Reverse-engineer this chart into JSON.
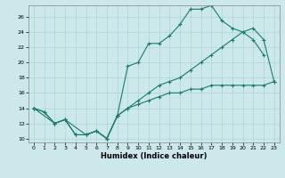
{
  "xlabel": "Humidex (Indice chaleur)",
  "bg_color": "#cce8ea",
  "grid_color": "#b0d8da",
  "line_color": "#1a7a6e",
  "xlim": [
    -0.5,
    23.5
  ],
  "ylim": [
    9.5,
    27.5
  ],
  "xticks": [
    0,
    1,
    2,
    3,
    4,
    5,
    6,
    7,
    8,
    9,
    10,
    11,
    12,
    13,
    14,
    15,
    16,
    17,
    18,
    19,
    20,
    21,
    22,
    23
  ],
  "yticks": [
    10,
    12,
    14,
    16,
    18,
    20,
    22,
    24,
    26
  ],
  "line1_x": [
    0,
    1,
    2,
    3,
    4,
    5,
    6,
    7,
    8,
    9,
    10,
    11,
    12,
    13,
    14,
    15,
    16,
    17,
    18,
    19,
    20,
    21,
    22
  ],
  "line1_y": [
    14.0,
    13.5,
    12.0,
    12.5,
    10.5,
    10.5,
    11.0,
    10.0,
    13.0,
    19.5,
    20.0,
    22.5,
    22.5,
    23.5,
    25.0,
    27.0,
    27.0,
    27.5,
    25.5,
    24.5,
    24.0,
    23.0,
    21.0
  ],
  "line2_x": [
    0,
    1,
    2,
    3,
    4,
    5,
    6,
    7,
    8,
    9,
    10,
    11,
    12,
    13,
    14,
    15,
    16,
    17,
    18,
    19,
    20,
    21,
    22,
    23
  ],
  "line2_y": [
    14.0,
    13.5,
    12.0,
    12.5,
    10.5,
    10.5,
    11.0,
    10.0,
    13.0,
    14.0,
    14.5,
    15.0,
    15.5,
    16.0,
    16.0,
    16.5,
    16.5,
    17.0,
    17.0,
    17.0,
    17.0,
    17.0,
    17.0,
    17.5
  ],
  "line3_x": [
    0,
    2,
    3,
    5,
    6,
    7,
    8,
    9,
    10,
    11,
    12,
    13,
    14,
    15,
    16,
    17,
    18,
    19,
    20,
    21,
    22,
    23
  ],
  "line3_y": [
    14.0,
    12.0,
    12.5,
    10.5,
    11.0,
    10.0,
    13.0,
    14.0,
    15.0,
    16.0,
    17.0,
    17.5,
    18.0,
    19.0,
    20.0,
    21.0,
    22.0,
    23.0,
    24.0,
    24.5,
    23.0,
    17.5
  ]
}
